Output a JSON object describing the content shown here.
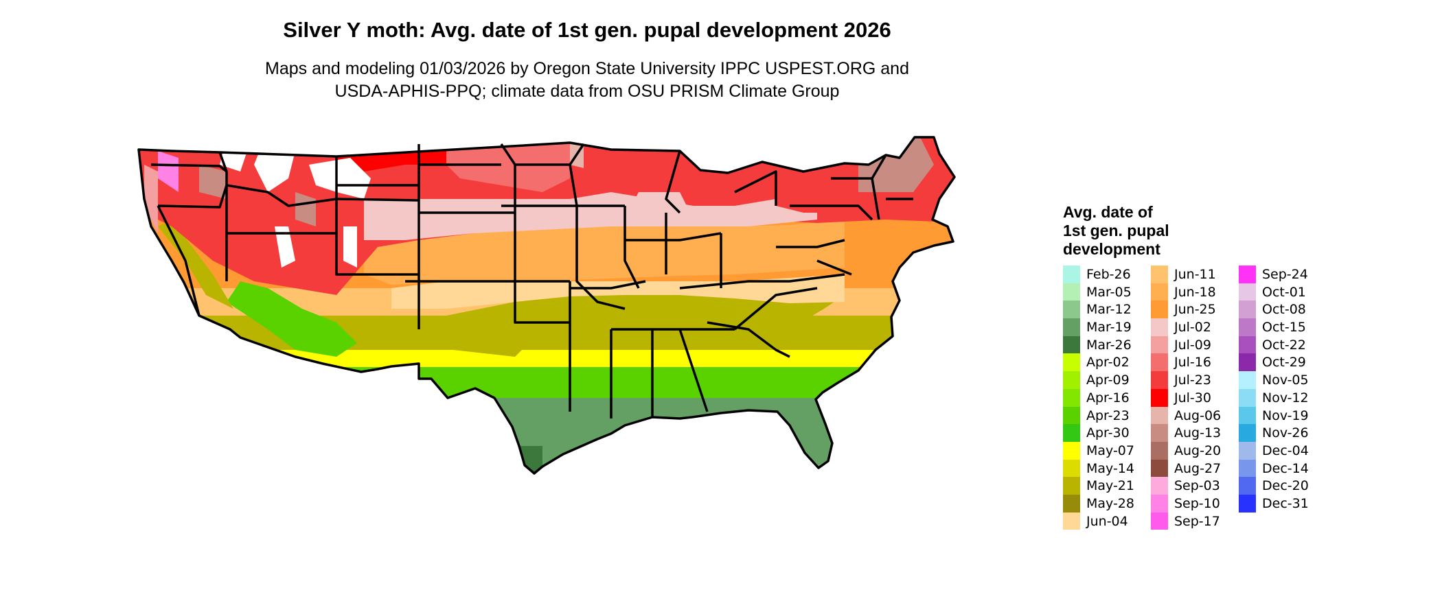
{
  "title": "Silver Y moth: Avg. date of 1st gen. pupal development 2026",
  "subtitle_lines": [
    "Maps and modeling 01/03/2026 by Oregon State University IPPC USPEST.ORG and",
    "USDA-APHIS-PPQ; climate data from OSU PRISM Climate Group"
  ],
  "legend": {
    "title_lines": [
      "Avg. date of",
      "1st gen. pupal",
      "development"
    ],
    "columns": [
      [
        {
          "label": "Feb-26",
          "color": "#aaf5e6"
        },
        {
          "label": "Mar-05",
          "color": "#b4f0b4"
        },
        {
          "label": "Mar-12",
          "color": "#8cc88c"
        },
        {
          "label": "Mar-19",
          "color": "#64a064"
        },
        {
          "label": "Mar-26",
          "color": "#3c783c"
        },
        {
          "label": "Apr-02",
          "color": "#c8ff00"
        },
        {
          "label": "Apr-09",
          "color": "#a0f000"
        },
        {
          "label": "Apr-16",
          "color": "#82e600"
        },
        {
          "label": "Apr-23",
          "color": "#5ad200"
        },
        {
          "label": "Apr-30",
          "color": "#32c814"
        },
        {
          "label": "May-07",
          "color": "#ffff00"
        },
        {
          "label": "May-14",
          "color": "#dcdc00"
        },
        {
          "label": "May-21",
          "color": "#b9b400"
        },
        {
          "label": "May-28",
          "color": "#968c0a"
        },
        {
          "label": "Jun-04",
          "color": "#ffd796"
        }
      ],
      [
        {
          "label": "Jun-11",
          "color": "#ffc36e"
        },
        {
          "label": "Jun-18",
          "color": "#ffaf50"
        },
        {
          "label": "Jun-25",
          "color": "#ff9b32"
        },
        {
          "label": "Jul-02",
          "color": "#f5c8c8"
        },
        {
          "label": "Jul-09",
          "color": "#f5a0a0"
        },
        {
          "label": "Jul-16",
          "color": "#f56e6e"
        },
        {
          "label": "Jul-23",
          "color": "#f53c3c"
        },
        {
          "label": "Jul-30",
          "color": "#ff0000"
        },
        {
          "label": "Aug-06",
          "color": "#e6b4aa"
        },
        {
          "label": "Aug-13",
          "color": "#c88c82"
        },
        {
          "label": "Aug-20",
          "color": "#aa6e64"
        },
        {
          "label": "Aug-27",
          "color": "#8c4b3c"
        },
        {
          "label": "Sep-03",
          "color": "#ffaadc"
        },
        {
          "label": "Sep-10",
          "color": "#ff82e6"
        },
        {
          "label": "Sep-17",
          "color": "#ff5aeb"
        }
      ],
      [
        {
          "label": "Sep-24",
          "color": "#ff32f5"
        },
        {
          "label": "Oct-01",
          "color": "#e6c8e6"
        },
        {
          "label": "Oct-08",
          "color": "#d2a0d2"
        },
        {
          "label": "Oct-15",
          "color": "#be78c8"
        },
        {
          "label": "Oct-22",
          "color": "#aa50be"
        },
        {
          "label": "Oct-29",
          "color": "#8c28aa"
        },
        {
          "label": "Nov-05",
          "color": "#b4f0ff"
        },
        {
          "label": "Nov-12",
          "color": "#8cdcf5"
        },
        {
          "label": "Nov-19",
          "color": "#5ac8eb"
        },
        {
          "label": "Nov-26",
          "color": "#28aae1"
        },
        {
          "label": "Dec-04",
          "color": "#a0b9eb"
        },
        {
          "label": "Dec-14",
          "color": "#7896eb"
        },
        {
          "label": "Dec-20",
          "color": "#5069f0"
        },
        {
          "label": "Dec-31",
          "color": "#2832ff"
        }
      ]
    ]
  }
}
